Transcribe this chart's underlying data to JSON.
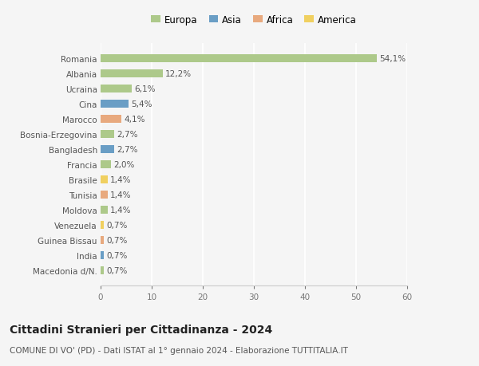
{
  "countries": [
    "Romania",
    "Albania",
    "Ucraina",
    "Cina",
    "Marocco",
    "Bosnia-Erzegovina",
    "Bangladesh",
    "Francia",
    "Brasile",
    "Tunisia",
    "Moldova",
    "Venezuela",
    "Guinea Bissau",
    "India",
    "Macedonia d/N."
  ],
  "values": [
    54.1,
    12.2,
    6.1,
    5.4,
    4.1,
    2.7,
    2.7,
    2.0,
    1.4,
    1.4,
    1.4,
    0.7,
    0.7,
    0.7,
    0.7
  ],
  "labels": [
    "54,1%",
    "12,2%",
    "6,1%",
    "5,4%",
    "4,1%",
    "2,7%",
    "2,7%",
    "2,0%",
    "1,4%",
    "1,4%",
    "1,4%",
    "0,7%",
    "0,7%",
    "0,7%",
    "0,7%"
  ],
  "continents": [
    "Europa",
    "Europa",
    "Europa",
    "Asia",
    "Africa",
    "Europa",
    "Asia",
    "Europa",
    "America",
    "Africa",
    "Europa",
    "America",
    "Africa",
    "Asia",
    "Europa"
  ],
  "continent_colors": {
    "Europa": "#adc98a",
    "Asia": "#6a9ec5",
    "Africa": "#e8a97e",
    "America": "#f0d060"
  },
  "legend_order": [
    "Europa",
    "Asia",
    "Africa",
    "America"
  ],
  "legend_colors": [
    "#adc98a",
    "#6a9ec5",
    "#e8a97e",
    "#f0d060"
  ],
  "xlim": [
    0,
    60
  ],
  "xticks": [
    0,
    10,
    20,
    30,
    40,
    50,
    60
  ],
  "title": "Cittadini Stranieri per Cittadinanza - 2024",
  "subtitle": "COMUNE DI VO' (PD) - Dati ISTAT al 1° gennaio 2024 - Elaborazione TUTTITALIA.IT",
  "background_color": "#f5f5f5",
  "grid_color": "#ffffff",
  "bar_height": 0.55,
  "label_fontsize": 7.5,
  "ytick_fontsize": 7.5,
  "xtick_fontsize": 7.5,
  "legend_fontsize": 8.5,
  "title_fontsize": 10,
  "subtitle_fontsize": 7.5
}
